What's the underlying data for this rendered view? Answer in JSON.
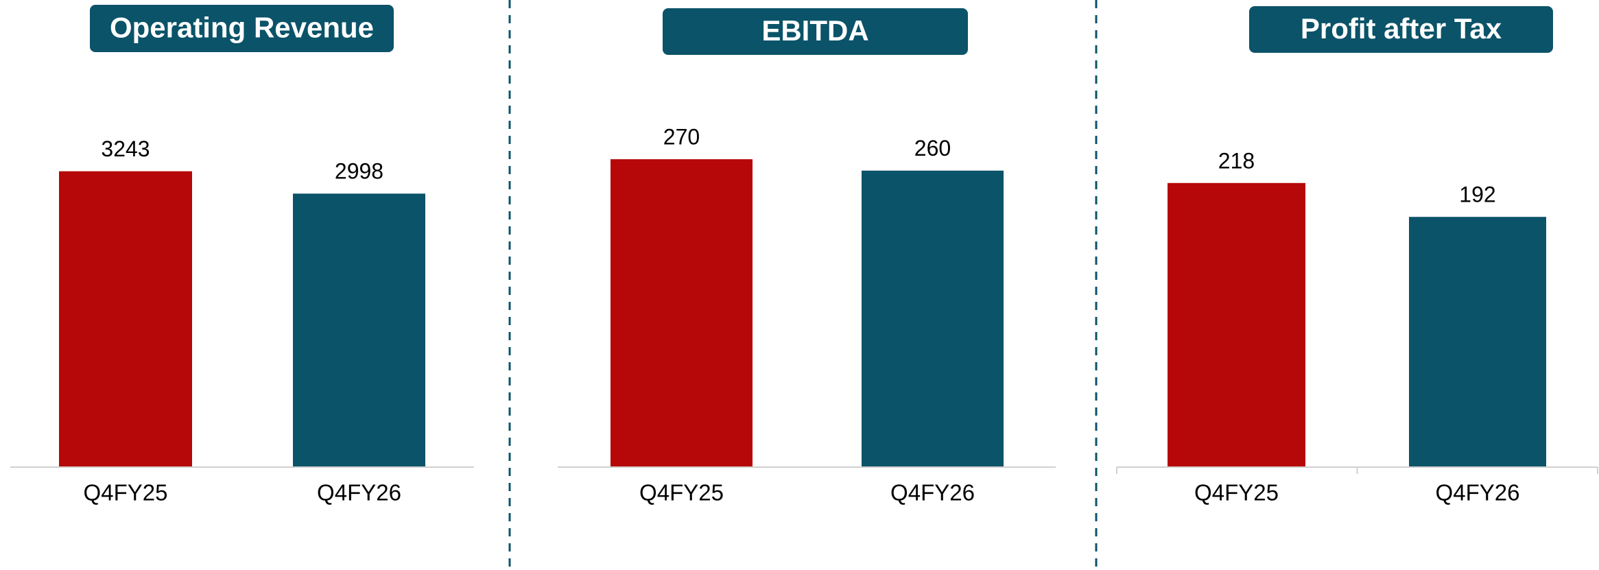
{
  "chart_data": [
    {
      "type": "bar",
      "title": "Operating Revenue",
      "categories": [
        "Q4FY25",
        "Q4FY26"
      ],
      "values": [
        3243,
        2998
      ],
      "colors": [
        "#b60808",
        "#0b5369"
      ],
      "ylim": [
        0,
        4000
      ]
    },
    {
      "type": "bar",
      "title": "EBITDA",
      "categories": [
        "Q4FY25",
        "Q4FY26"
      ],
      "values": [
        270,
        260
      ],
      "colors": [
        "#b60808",
        "#0b5369"
      ],
      "ylim": [
        0,
        320
      ]
    },
    {
      "type": "bar",
      "title": "Profit after Tax",
      "categories": [
        "Q4FY25",
        "Q4FY26"
      ],
      "values": [
        218,
        192
      ],
      "colors": [
        "#b60808",
        "#0b5369"
      ],
      "ylim": [
        0,
        280
      ]
    }
  ]
}
